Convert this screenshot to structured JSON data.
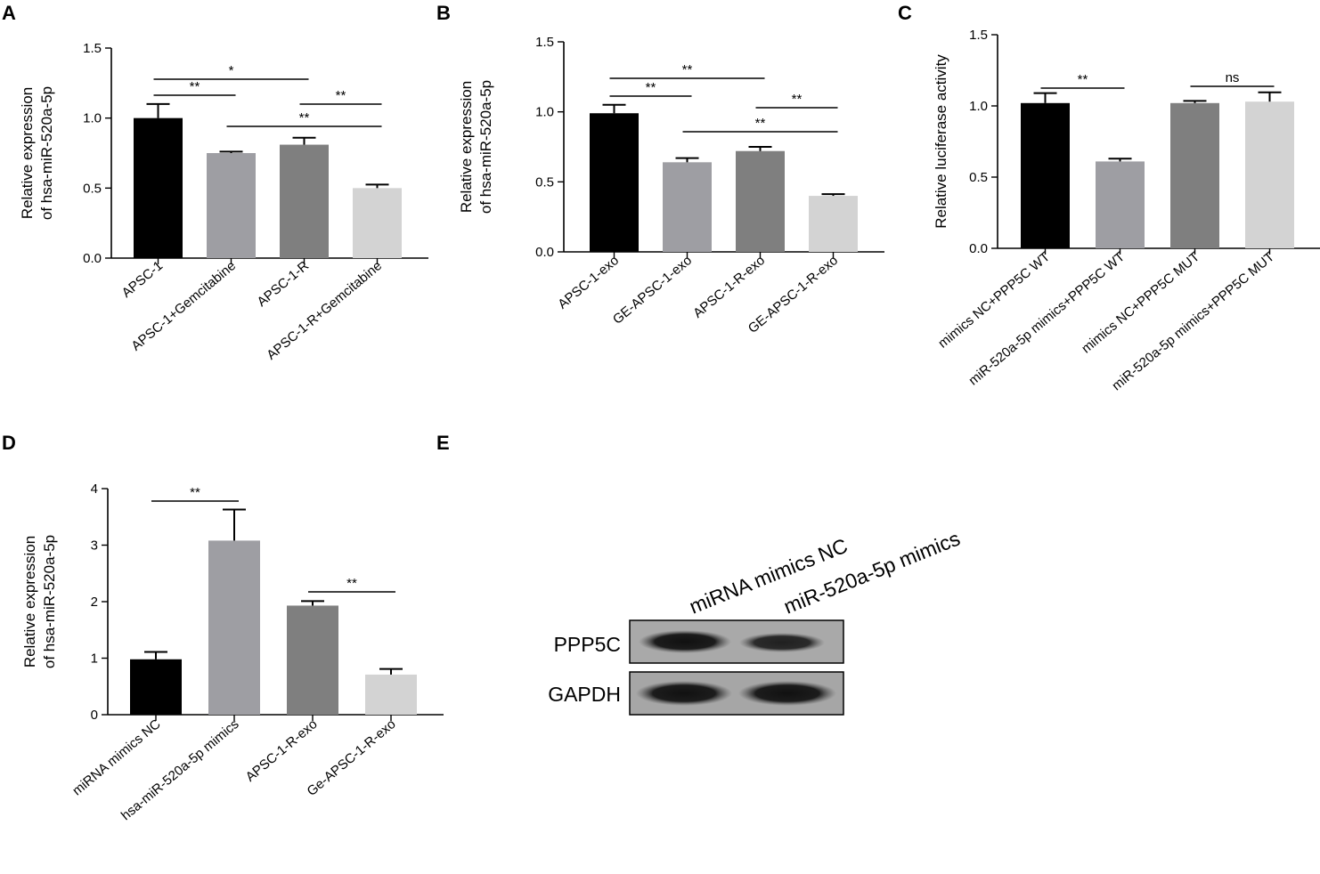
{
  "panels": {
    "A": "A",
    "B": "B",
    "C": "C",
    "D": "D",
    "E": "E"
  },
  "chart_data": [
    {
      "panel": "A",
      "type": "bar",
      "ylabel_lines": [
        "Relative expression",
        "of hsa-miR-520a-5p"
      ],
      "ylim": [
        0,
        1.5
      ],
      "yticks": [
        "0.0",
        "0.5",
        "1.0",
        "1.5"
      ],
      "categories": [
        "APSC-1",
        "APSC-1+Gemcitabine",
        "APSC-1-R",
        "APSC-1-R+Gemcitabine"
      ],
      "values": [
        1.0,
        0.75,
        0.81,
        0.5
      ],
      "errors": [
        0.1,
        0.01,
        0.05,
        0.025
      ],
      "colors": [
        "#000000",
        "#9e9ea3",
        "#7f7f7f",
        "#d3d3d3"
      ],
      "significance": [
        {
          "from": 0,
          "to": 2,
          "label": "*"
        },
        {
          "from": 0,
          "to": 1,
          "label": "**"
        },
        {
          "from": 2,
          "to": 3,
          "label": "**"
        },
        {
          "from": 1,
          "to": 3,
          "label": "**"
        }
      ]
    },
    {
      "panel": "B",
      "type": "bar",
      "ylabel_lines": [
        "Relative expression",
        "of hsa-miR-520a-5p"
      ],
      "ylim": [
        0,
        1.5
      ],
      "yticks": [
        "0.0",
        "0.5",
        "1.0",
        "1.5"
      ],
      "categories": [
        "APSC-1-exo",
        "GE-APSC-1-exo",
        "APSC-1-R-exo",
        "GE-APSC-1-R-exo"
      ],
      "values": [
        0.99,
        0.64,
        0.72,
        0.4
      ],
      "errors": [
        0.06,
        0.03,
        0.03,
        0.012
      ],
      "colors": [
        "#000000",
        "#9e9ea3",
        "#7f7f7f",
        "#d3d3d3"
      ],
      "significance": [
        {
          "from": 0,
          "to": 2,
          "label": "**"
        },
        {
          "from": 0,
          "to": 1,
          "label": "**"
        },
        {
          "from": 2,
          "to": 3,
          "label": "**"
        },
        {
          "from": 1,
          "to": 3,
          "label": "**"
        }
      ]
    },
    {
      "panel": "C",
      "type": "bar",
      "ylabel_lines": [
        "Relative luciferase activity"
      ],
      "ylim": [
        0,
        1.5
      ],
      "yticks": [
        "0.0",
        "0.5",
        "1.0",
        "1.5"
      ],
      "categories": [
        "mimics NC+PPP5C WT",
        "miR-520a-5p mimics+PPP5C WT",
        "mimics NC+PPP5C MUT",
        "miR-520a-5p mimics+PPP5C MUT"
      ],
      "values": [
        1.02,
        0.61,
        1.02,
        1.03
      ],
      "errors": [
        0.07,
        0.02,
        0.015,
        0.065
      ],
      "colors": [
        "#000000",
        "#9e9ea3",
        "#7f7f7f",
        "#d3d3d3"
      ],
      "significance": [
        {
          "from": 0,
          "to": 1,
          "label": "**"
        },
        {
          "from": 2,
          "to": 3,
          "label": "ns"
        }
      ]
    },
    {
      "panel": "D",
      "type": "bar",
      "ylabel_lines": [
        "Relative expression",
        "of hsa-miR-520a-5p"
      ],
      "ylim": [
        0,
        4
      ],
      "yticks": [
        "0",
        "1",
        "2",
        "3",
        "4"
      ],
      "categories": [
        "miRNA mimics NC",
        "hsa-miR-520a-5p mimics",
        "APSC-1-R-exo",
        "Ge-APSC-1-R-exo"
      ],
      "values": [
        0.98,
        3.08,
        1.93,
        0.71
      ],
      "errors": [
        0.13,
        0.55,
        0.08,
        0.1
      ],
      "colors": [
        "#000000",
        "#9e9ea3",
        "#7f7f7f",
        "#d3d3d3"
      ],
      "significance": [
        {
          "from": 0,
          "to": 1,
          "label": "**"
        },
        {
          "from": 2,
          "to": 3,
          "label": "**"
        }
      ]
    }
  ],
  "blot": {
    "lanes": [
      "miRNA mimics NC",
      "miR-520a-5p mimics"
    ],
    "rows": [
      "PPP5C",
      "GAPDH"
    ]
  }
}
